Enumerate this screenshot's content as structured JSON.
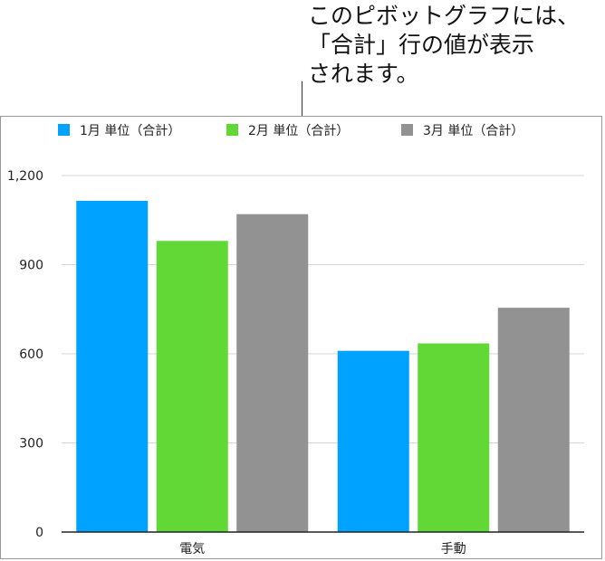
{
  "callout": "このピボットグラフには、\n「合計」行の値が表示\nされます。",
  "chart_data": {
    "type": "bar",
    "categories": [
      "電気",
      "手動"
    ],
    "series": [
      {
        "name": "1月 単位（合計）",
        "values": [
          1115,
          610
        ],
        "color": "#00a2ff"
      },
      {
        "name": "2月 単位（合計）",
        "values": [
          980,
          635
        ],
        "color": "#61d836"
      },
      {
        "name": "3月 単位（合計）",
        "values": [
          1070,
          755
        ],
        "color": "#929292"
      }
    ],
    "yticks": [
      "0",
      "300",
      "600",
      "900",
      "1,200"
    ],
    "ylim": [
      0,
      1200
    ],
    "grid": true,
    "legend": "top",
    "title": "",
    "xlabel": "",
    "ylabel": ""
  }
}
